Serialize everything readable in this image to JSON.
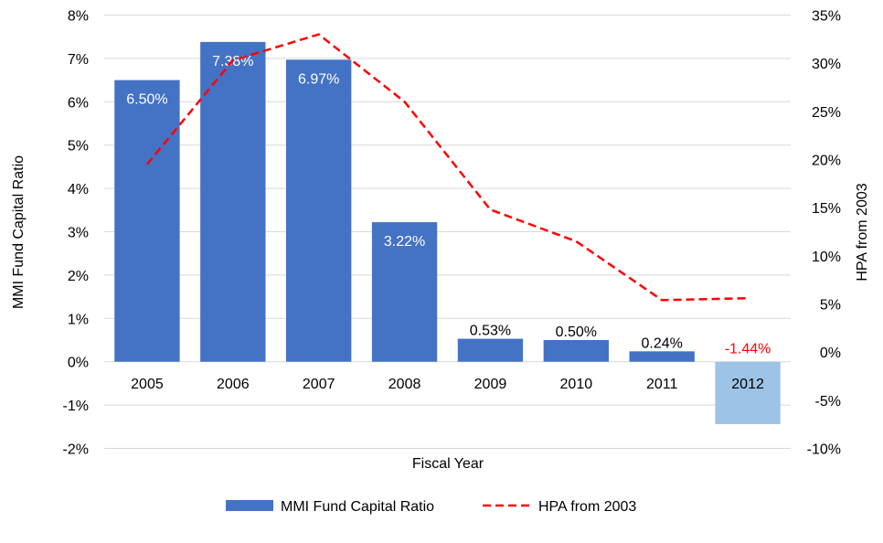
{
  "chart_data": {
    "type": "bar",
    "xlabel": "Fiscal Year",
    "ylabel_left": "MMI Fund Capital Ratio",
    "ylabel_right": "HPA from 2003",
    "categories": [
      "2005",
      "2006",
      "2007",
      "2008",
      "2009",
      "2010",
      "2011",
      "2012"
    ],
    "left_axis": {
      "min": -2,
      "max": 8,
      "step": 1,
      "ticks": [
        "-2%",
        "-1%",
        "0%",
        "1%",
        "2%",
        "3%",
        "4%",
        "5%",
        "6%",
        "7%",
        "8%"
      ]
    },
    "right_axis": {
      "min": -10,
      "max": 35,
      "step": 5,
      "ticks": [
        "-10%",
        "-5%",
        "0%",
        "5%",
        "10%",
        "15%",
        "20%",
        "25%",
        "30%",
        "35%"
      ]
    },
    "grid": true,
    "legend_position": "bottom",
    "series": [
      {
        "name": "MMI Fund Capital Ratio",
        "kind": "bar",
        "axis": "left",
        "color": "#4472C4",
        "negative_color": "#9DC3E6",
        "values": [
          6.5,
          7.38,
          6.97,
          3.22,
          0.53,
          0.5,
          0.24,
          -1.44
        ],
        "labels": [
          "6.50%",
          "7.38%",
          "6.97%",
          "3.22%",
          "0.53%",
          "0.50%",
          "0.24%",
          "-1.44%"
        ]
      },
      {
        "name": "HPA from 2003",
        "kind": "line",
        "style": "dashed",
        "axis": "right",
        "color": "#FF0000",
        "values": [
          19.5,
          30.3,
          33.0,
          26.0,
          14.8,
          11.5,
          5.4,
          5.6
        ]
      }
    ]
  }
}
